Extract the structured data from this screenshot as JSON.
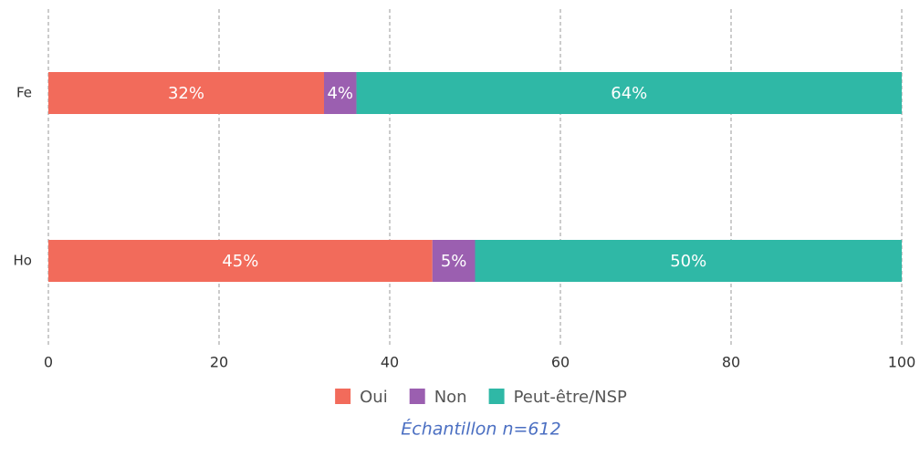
{
  "chart_data": {
    "type": "bar",
    "orientation": "horizontal",
    "stacked": true,
    "categories": [
      "Fe",
      "Ho"
    ],
    "series": [
      {
        "name": "Oui",
        "color": "#f26b5b",
        "values": [
          32.3,
          45
        ],
        "value_labels": [
          "32%",
          "45%"
        ]
      },
      {
        "name": "Non",
        "color": "#9b5fb0",
        "values": [
          3.8,
          5
        ],
        "value_labels": [
          "4%",
          "5%"
        ]
      },
      {
        "name": "Peut-être/NSP",
        "color": "#2fb8a6",
        "values": [
          63.9,
          50
        ],
        "value_labels": [
          "64%",
          "50%"
        ]
      }
    ],
    "xlim": [
      0,
      100
    ],
    "xticks": [
      0,
      20,
      40,
      60,
      80,
      100
    ],
    "grid": true,
    "legend": "bottom",
    "caption": "Échantillon n=612"
  }
}
